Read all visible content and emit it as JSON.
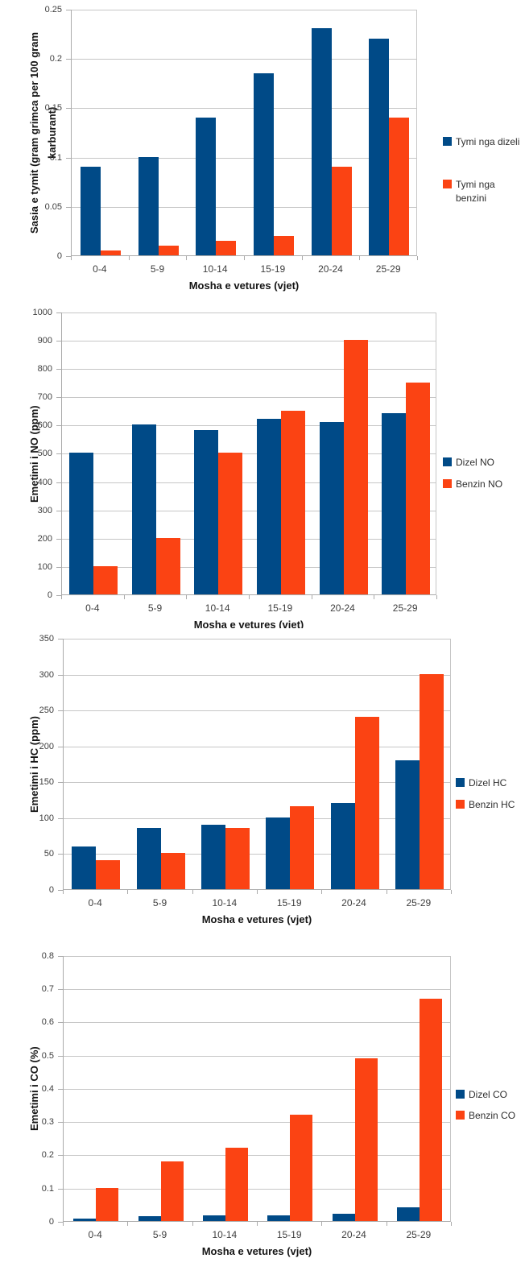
{
  "colors": {
    "diesel_blue": "#004A87",
    "benzin_orange": "#FB4313",
    "gridline": "#C6C6C6",
    "axis_line": "#ABABAB",
    "tick_text": "#3E3E3E",
    "title_text": "#141414"
  },
  "x_categories": [
    "0-4",
    "5-9",
    "10-14",
    "15-19",
    "20-24",
    "25-29"
  ],
  "x_axis_title": "Mosha e vetures (vjet)",
  "chart_data": [
    {
      "type": "bar",
      "title": "",
      "ylabel": "Sasia e tymit  (gram grimca per 100 gram karburant)",
      "xlabel": "Mosha e vetures (vjet)",
      "categories": [
        "0-4",
        "5-9",
        "10-14",
        "15-19",
        "20-24",
        "25-29"
      ],
      "ylim": [
        0,
        0.25
      ],
      "yticks": [
        "0",
        "0.05",
        "0.1",
        "0.15",
        "0.2",
        "0.25"
      ],
      "grid": true,
      "legend_position": "right",
      "series": [
        {
          "name": "Tymi nga dizeli",
          "color": "#004A87",
          "values": [
            0.09,
            0.1,
            0.14,
            0.185,
            0.23,
            0.22
          ]
        },
        {
          "name": "Tymi nga\nbenzini",
          "color": "#FB4313",
          "values": [
            0.005,
            0.01,
            0.015,
            0.02,
            0.09,
            0.14
          ]
        }
      ]
    },
    {
      "type": "bar",
      "title": "",
      "ylabel": "Emetimi i NO  (ppm)",
      "xlabel": "Mosha e vetures (vjet)",
      "categories": [
        "0-4",
        "5-9",
        "10-14",
        "15-19",
        "20-24",
        "25-29"
      ],
      "ylim": [
        0,
        1000
      ],
      "yticks": [
        "0",
        "100",
        "200",
        "300",
        "400",
        "500",
        "600",
        "700",
        "800",
        "900",
        "1000"
      ],
      "grid": true,
      "legend_position": "right",
      "series": [
        {
          "name": "Dizel NO",
          "color": "#004A87",
          "values": [
            500,
            600,
            580,
            620,
            610,
            640
          ]
        },
        {
          "name": "Benzin NO",
          "color": "#FB4313",
          "values": [
            100,
            200,
            500,
            650,
            900,
            750
          ]
        }
      ]
    },
    {
      "type": "bar",
      "title": "",
      "ylabel": "Emetimi i HC  (ppm)",
      "xlabel": "Mosha e vetures (vjet)",
      "categories": [
        "0-4",
        "5-9",
        "10-14",
        "15-19",
        "20-24",
        "25-29"
      ],
      "ylim": [
        0,
        350
      ],
      "yticks": [
        "0",
        "50",
        "100",
        "150",
        "200",
        "250",
        "300",
        "350"
      ],
      "grid": true,
      "legend_position": "right",
      "series": [
        {
          "name": "Dizel HC",
          "color": "#004A87",
          "values": [
            60,
            85,
            90,
            100,
            120,
            180
          ]
        },
        {
          "name": "Benzin HC",
          "color": "#FB4313",
          "values": [
            40,
            50,
            85,
            115,
            240,
            300
          ]
        }
      ]
    },
    {
      "type": "bar",
      "title": "",
      "ylabel": "Emetimi i CO  (%)",
      "xlabel": "Mosha e vetures (vjet)",
      "categories": [
        "0-4",
        "5-9",
        "10-14",
        "15-19",
        "20-24",
        "25-29"
      ],
      "ylim": [
        0,
        0.8
      ],
      "yticks": [
        "0",
        "0.1",
        "0.2",
        "0.3",
        "0.4",
        "0.5",
        "0.6",
        "0.7",
        "0.8"
      ],
      "grid": true,
      "legend_position": "right",
      "series": [
        {
          "name": "Dizel CO",
          "color": "#004A87",
          "values": [
            0.008,
            0.015,
            0.018,
            0.018,
            0.023,
            0.04
          ]
        },
        {
          "name": "Benzin CO",
          "color": "#FB4313",
          "values": [
            0.1,
            0.18,
            0.22,
            0.32,
            0.49,
            0.67
          ]
        }
      ]
    }
  ]
}
